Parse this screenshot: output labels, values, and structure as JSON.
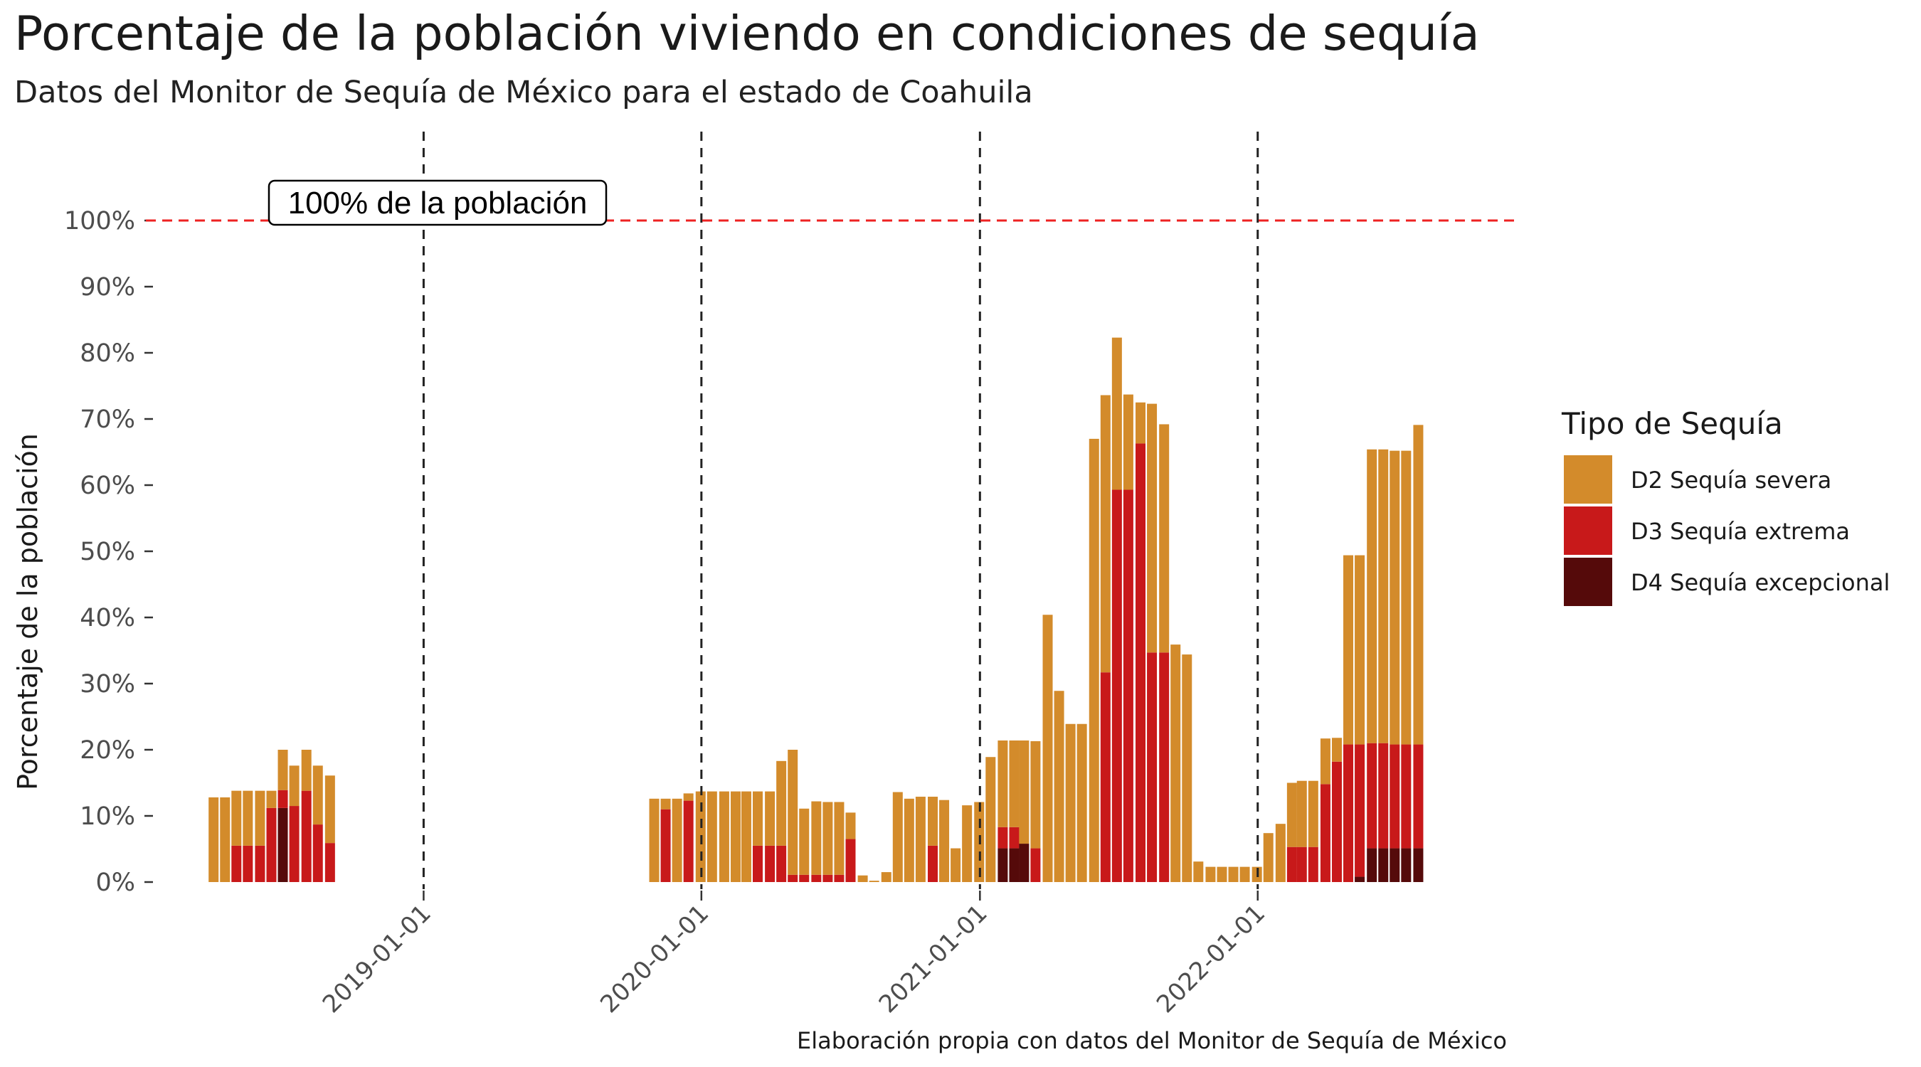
{
  "title": "Porcentaje de la población viviendo en condiciones de sequía",
  "subtitle": "Datos del Monitor de Sequía de México para el estado de Coahuila",
  "caption": "Elaboración propia con datos del Monitor de Sequía de México",
  "colors": {
    "d2": "#D38B2B",
    "d3": "#C8191A",
    "d4": "#550A0A",
    "reference_line": "#EE2222",
    "year_line": "#222222"
  },
  "chart_data": {
    "type": "bar",
    "stacked": true,
    "ylabel": "Porcentaje de la población",
    "xlabel": "",
    "ylim": [
      0,
      100
    ],
    "y_ticks": [
      "0%",
      "10%",
      "20%",
      "30%",
      "40%",
      "50%",
      "60%",
      "70%",
      "80%",
      "90%",
      "100%"
    ],
    "x_ticks": [
      {
        "date": "2019-01-01",
        "label": "2019-01-01"
      },
      {
        "date": "2020-01-01",
        "label": "2020-01-01"
      },
      {
        "date": "2021-01-01",
        "label": "2021-01-01"
      },
      {
        "date": "2022-01-01",
        "label": "2022-01-01"
      }
    ],
    "x_range": [
      "2018-01-01",
      "2022-12-01"
    ],
    "grid": false,
    "legend_position": "right",
    "legend_title": "Tipo de Sequía",
    "series_order": [
      "D2 Sequía severa",
      "D3 Sequía extrema",
      "D4 Sequía excepcional"
    ],
    "reference_line": {
      "y": 100,
      "label": "100% de la población"
    },
    "vertical_lines": [
      "2019-01-01",
      "2020-01-01",
      "2021-01-01",
      "2022-01-01"
    ],
    "bars": [
      {
        "date": "2018-03-31",
        "d2": 12.8,
        "d3": 0,
        "d4": 0
      },
      {
        "date": "2018-04-15",
        "d2": 12.8,
        "d3": 0,
        "d4": 0
      },
      {
        "date": "2018-04-30",
        "d2": 8.3,
        "d3": 5.5,
        "d4": 0
      },
      {
        "date": "2018-05-15",
        "d2": 8.3,
        "d3": 5.5,
        "d4": 0
      },
      {
        "date": "2018-05-31",
        "d2": 8.3,
        "d3": 5.5,
        "d4": 0
      },
      {
        "date": "2018-06-15",
        "d2": 2.6,
        "d3": 11.2,
        "d4": 0
      },
      {
        "date": "2018-06-30",
        "d2": 6.1,
        "d3": 2.7,
        "d4": 11.2
      },
      {
        "date": "2018-07-15",
        "d2": 6.1,
        "d3": 11.5,
        "d4": 0
      },
      {
        "date": "2018-07-31",
        "d2": 6.2,
        "d3": 13.8,
        "d4": 0
      },
      {
        "date": "2018-08-15",
        "d2": 8.9,
        "d3": 8.7,
        "d4": 0
      },
      {
        "date": "2018-08-31",
        "d2": 10.2,
        "d3": 5.9,
        "d4": 0
      },
      {
        "date": "2019-10-31",
        "d2": 12.6,
        "d3": 0,
        "d4": 0
      },
      {
        "date": "2019-11-15",
        "d2": 1.6,
        "d3": 11.0,
        "d4": 0
      },
      {
        "date": "2019-11-30",
        "d2": 12.6,
        "d3": 0,
        "d4": 0
      },
      {
        "date": "2019-12-15",
        "d2": 1.1,
        "d3": 12.3,
        "d4": 0
      },
      {
        "date": "2019-12-31",
        "d2": 13.7,
        "d3": 0,
        "d4": 0
      },
      {
        "date": "2020-01-15",
        "d2": 13.7,
        "d3": 0,
        "d4": 0
      },
      {
        "date": "2020-01-31",
        "d2": 13.7,
        "d3": 0,
        "d4": 0
      },
      {
        "date": "2020-02-15",
        "d2": 13.7,
        "d3": 0,
        "d4": 0
      },
      {
        "date": "2020-02-29",
        "d2": 13.7,
        "d3": 0,
        "d4": 0
      },
      {
        "date": "2020-03-15",
        "d2": 8.2,
        "d3": 5.5,
        "d4": 0
      },
      {
        "date": "2020-03-31",
        "d2": 8.2,
        "d3": 5.5,
        "d4": 0
      },
      {
        "date": "2020-04-15",
        "d2": 12.8,
        "d3": 5.5,
        "d4": 0
      },
      {
        "date": "2020-04-30",
        "d2": 18.9,
        "d3": 1.1,
        "d4": 0
      },
      {
        "date": "2020-05-15",
        "d2": 10.0,
        "d3": 1.1,
        "d4": 0
      },
      {
        "date": "2020-05-31",
        "d2": 11.1,
        "d3": 1.1,
        "d4": 0
      },
      {
        "date": "2020-06-15",
        "d2": 11.0,
        "d3": 1.1,
        "d4": 0
      },
      {
        "date": "2020-06-30",
        "d2": 11.0,
        "d3": 1.1,
        "d4": 0
      },
      {
        "date": "2020-07-15",
        "d2": 4.0,
        "d3": 6.5,
        "d4": 0
      },
      {
        "date": "2020-07-31",
        "d2": 1.0,
        "d3": 0,
        "d4": 0
      },
      {
        "date": "2020-08-15",
        "d2": 0.2,
        "d3": 0,
        "d4": 0
      },
      {
        "date": "2020-08-31",
        "d2": 1.5,
        "d3": 0,
        "d4": 0
      },
      {
        "date": "2020-09-15",
        "d2": 13.6,
        "d3": 0,
        "d4": 0
      },
      {
        "date": "2020-09-30",
        "d2": 12.6,
        "d3": 0,
        "d4": 0
      },
      {
        "date": "2020-10-15",
        "d2": 12.9,
        "d3": 0,
        "d4": 0
      },
      {
        "date": "2020-10-31",
        "d2": 7.4,
        "d3": 5.5,
        "d4": 0
      },
      {
        "date": "2020-11-15",
        "d2": 12.4,
        "d3": 0,
        "d4": 0
      },
      {
        "date": "2020-11-30",
        "d2": 5.1,
        "d3": 0,
        "d4": 0
      },
      {
        "date": "2020-12-15",
        "d2": 11.6,
        "d3": 0,
        "d4": 0
      },
      {
        "date": "2020-12-31",
        "d2": 12.1,
        "d3": 0,
        "d4": 0
      },
      {
        "date": "2021-01-15",
        "d2": 18.9,
        "d3": 0,
        "d4": 0
      },
      {
        "date": "2021-01-31",
        "d2": 13.1,
        "d3": 3.2,
        "d4": 5.1
      },
      {
        "date": "2021-02-15",
        "d2": 13.1,
        "d3": 3.2,
        "d4": 5.1
      },
      {
        "date": "2021-02-28",
        "d2": 15.6,
        "d3": 0,
        "d4": 5.8
      },
      {
        "date": "2021-03-15",
        "d2": 16.2,
        "d3": 5.1,
        "d4": 0
      },
      {
        "date": "2021-03-31",
        "d2": 40.4,
        "d3": 0,
        "d4": 0
      },
      {
        "date": "2021-04-15",
        "d2": 28.9,
        "d3": 0,
        "d4": 0
      },
      {
        "date": "2021-04-30",
        "d2": 23.9,
        "d3": 0,
        "d4": 0
      },
      {
        "date": "2021-05-15",
        "d2": 23.9,
        "d3": 0,
        "d4": 0
      },
      {
        "date": "2021-05-31",
        "d2": 67.0,
        "d3": 0,
        "d4": 0
      },
      {
        "date": "2021-06-15",
        "d2": 41.9,
        "d3": 31.7,
        "d4": 0
      },
      {
        "date": "2021-06-30",
        "d2": 23.0,
        "d3": 59.3,
        "d4": 0
      },
      {
        "date": "2021-07-15",
        "d2": 14.4,
        "d3": 59.3,
        "d4": 0
      },
      {
        "date": "2021-07-31",
        "d2": 6.2,
        "d3": 66.3,
        "d4": 0
      },
      {
        "date": "2021-08-15",
        "d2": 37.6,
        "d3": 34.7,
        "d4": 0
      },
      {
        "date": "2021-08-31",
        "d2": 34.5,
        "d3": 34.7,
        "d4": 0
      },
      {
        "date": "2021-09-15",
        "d2": 35.9,
        "d3": 0,
        "d4": 0
      },
      {
        "date": "2021-09-30",
        "d2": 34.4,
        "d3": 0,
        "d4": 0
      },
      {
        "date": "2021-10-15",
        "d2": 3.1,
        "d3": 0,
        "d4": 0
      },
      {
        "date": "2021-10-31",
        "d2": 2.3,
        "d3": 0,
        "d4": 0
      },
      {
        "date": "2021-11-15",
        "d2": 2.3,
        "d3": 0,
        "d4": 0
      },
      {
        "date": "2021-11-30",
        "d2": 2.3,
        "d3": 0,
        "d4": 0
      },
      {
        "date": "2021-12-15",
        "d2": 2.3,
        "d3": 0,
        "d4": 0
      },
      {
        "date": "2021-12-31",
        "d2": 2.3,
        "d3": 0,
        "d4": 0
      },
      {
        "date": "2022-01-15",
        "d2": 7.4,
        "d3": 0,
        "d4": 0
      },
      {
        "date": "2022-01-31",
        "d2": 8.8,
        "d3": 0,
        "d4": 0
      },
      {
        "date": "2022-02-15",
        "d2": 9.7,
        "d3": 5.3,
        "d4": 0
      },
      {
        "date": "2022-02-28",
        "d2": 10.0,
        "d3": 5.3,
        "d4": 0
      },
      {
        "date": "2022-03-15",
        "d2": 10.0,
        "d3": 5.3,
        "d4": 0
      },
      {
        "date": "2022-03-31",
        "d2": 6.9,
        "d3": 14.8,
        "d4": 0
      },
      {
        "date": "2022-04-15",
        "d2": 3.6,
        "d3": 18.2,
        "d4": 0
      },
      {
        "date": "2022-04-30",
        "d2": 28.6,
        "d3": 20.8,
        "d4": 0
      },
      {
        "date": "2022-05-15",
        "d2": 28.6,
        "d3": 20.0,
        "d4": 0.8
      },
      {
        "date": "2022-05-31",
        "d2": 44.4,
        "d3": 15.9,
        "d4": 5.1
      },
      {
        "date": "2022-06-15",
        "d2": 44.4,
        "d3": 15.9,
        "d4": 5.1
      },
      {
        "date": "2022-06-30",
        "d2": 44.4,
        "d3": 15.7,
        "d4": 5.1
      },
      {
        "date": "2022-07-15",
        "d2": 44.4,
        "d3": 15.7,
        "d4": 5.1
      },
      {
        "date": "2022-07-31",
        "d2": 48.3,
        "d3": 15.7,
        "d4": 5.1
      }
    ]
  }
}
